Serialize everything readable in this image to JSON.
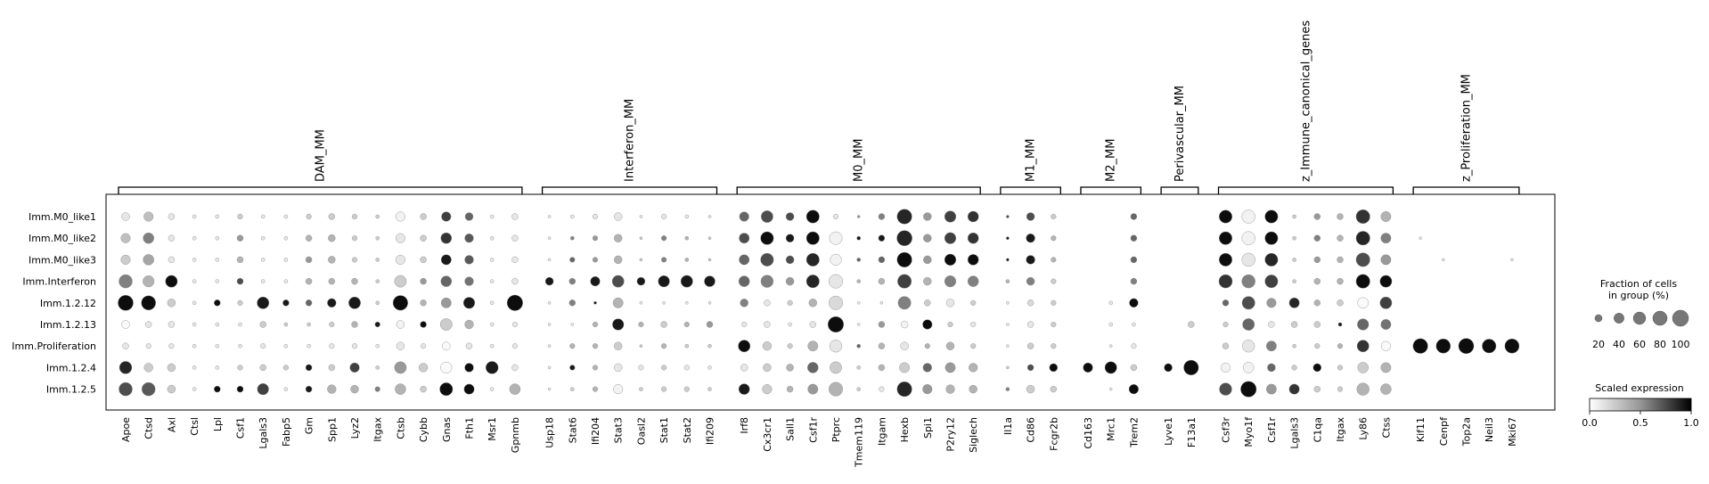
{
  "chart_data": {
    "type": "dotplot",
    "rows": [
      "Imm.M0_like1",
      "Imm.M0_like2",
      "Imm.M0_like3",
      "Imm.Interferon",
      "Imm.1.2.12",
      "Imm.1.2.13",
      "Imm.Proliferation",
      "Imm.1.2.4",
      "Imm.1.2.5"
    ],
    "groups": [
      {
        "name": "DAM_MM",
        "genes": [
          "Apoe",
          "Ctsd",
          "Axl",
          "Ctsl",
          "Lpl",
          "Csf1",
          "Lgals3",
          "Fabp5",
          "Gm",
          "Spp1",
          "Lyz2",
          "Itgax",
          "Ctsb",
          "Cybb",
          "Gnas",
          "Fth1",
          "Msr1",
          "Gpnmb"
        ]
      },
      {
        "name": "Interferon_MM",
        "genes": [
          "Usp18",
          "Stat6",
          "Ifi204",
          "Stat3",
          "Oasl2",
          "Stat1",
          "Stat2",
          "Ifi209"
        ]
      },
      {
        "name": "M0_MM",
        "genes": [
          "Irf8",
          "Cx3cr1",
          "Sall1",
          "Csf1r",
          "Ptprc",
          "Tmem119",
          "Itgam",
          "Hexb",
          "Spi1",
          "P2ry12",
          "Siglech"
        ]
      },
      {
        "name": "M1_MM",
        "genes": [
          "Il1a",
          "Cd86",
          "Fcgr2b"
        ]
      },
      {
        "name": "M2_MM",
        "genes": [
          "Cd163",
          "Mrc1",
          "Trem2"
        ]
      },
      {
        "name": "Perivascular_MM",
        "genes": [
          "Lyve1",
          "F13a1"
        ]
      },
      {
        "name": "z_Immune_canonical_genes",
        "genes": [
          "Csf3r",
          "Myo1f",
          "Csf1r",
          "Lgals3",
          "C1qa",
          "Itgax",
          "Ly86",
          "Ctss"
        ]
      },
      {
        "name": "z_Proliferation_MM",
        "genes": [
          "Kif11",
          "Cenpf",
          "Top2a",
          "Neil3",
          "Mki67"
        ]
      }
    ],
    "fraction": [
      [
        25,
        35,
        15,
        5,
        5,
        10,
        5,
        5,
        10,
        15,
        10,
        5,
        35,
        15,
        35,
        25,
        5,
        15,
        3,
        5,
        10,
        25,
        3,
        10,
        5,
        3,
        35,
        55,
        25,
        65,
        10,
        3,
        15,
        85,
        25,
        50,
        45,
        3,
        25,
        10,
        0,
        0,
        15,
        0,
        0,
        65,
        70,
        65,
        5,
        15,
        15,
        75,
        40,
        0,
        0,
        0,
        0,
        0
      ],
      [
        35,
        45,
        15,
        5,
        5,
        15,
        5,
        5,
        15,
        20,
        10,
        5,
        35,
        15,
        45,
        30,
        5,
        15,
        3,
        5,
        10,
        25,
        3,
        10,
        5,
        3,
        40,
        65,
        25,
        65,
        65,
        5,
        15,
        90,
        25,
        50,
        45,
        3,
        30,
        10,
        0,
        0,
        15,
        0,
        0,
        65,
        70,
        65,
        5,
        15,
        15,
        75,
        40,
        3,
        0,
        0,
        0,
        0
      ],
      [
        35,
        45,
        15,
        5,
        5,
        15,
        5,
        5,
        15,
        20,
        10,
        5,
        35,
        15,
        40,
        30,
        5,
        15,
        3,
        10,
        10,
        25,
        3,
        10,
        5,
        3,
        40,
        65,
        25,
        65,
        50,
        5,
        15,
        85,
        25,
        50,
        45,
        3,
        30,
        10,
        0,
        0,
        15,
        0,
        0,
        65,
        70,
        65,
        5,
        15,
        15,
        75,
        40,
        0,
        3,
        0,
        0,
        3
      ],
      [
        70,
        50,
        55,
        5,
        5,
        15,
        5,
        5,
        15,
        15,
        15,
        5,
        55,
        15,
        45,
        30,
        5,
        15,
        25,
        15,
        35,
        55,
        25,
        50,
        55,
        45,
        45,
        60,
        25,
        65,
        75,
        5,
        15,
        75,
        25,
        50,
        45,
        5,
        25,
        10,
        0,
        0,
        15,
        0,
        0,
        70,
        70,
        65,
        5,
        15,
        15,
        75,
        55,
        0,
        0,
        0,
        0,
        0
      ],
      [
        90,
        80,
        25,
        5,
        15,
        10,
        55,
        15,
        15,
        30,
        55,
        5,
        85,
        15,
        40,
        50,
        5,
        95,
        3,
        15,
        3,
        40,
        3,
        3,
        3,
        3,
        25,
        15,
        10,
        25,
        75,
        3,
        3,
        65,
        15,
        25,
        10,
        3,
        15,
        10,
        0,
        5,
        30,
        0,
        0,
        15,
        65,
        35,
        40,
        15,
        15,
        45,
        55,
        0,
        0,
        0,
        0,
        0
      ],
      [
        25,
        15,
        15,
        5,
        5,
        5,
        15,
        5,
        5,
        10,
        15,
        10,
        25,
        15,
        55,
        30,
        5,
        10,
        3,
        3,
        10,
        50,
        10,
        15,
        10,
        15,
        10,
        15,
        5,
        15,
        95,
        3,
        15,
        20,
        35,
        10,
        10,
        3,
        15,
        10,
        0,
        5,
        5,
        0,
        15,
        10,
        55,
        15,
        15,
        15,
        5,
        50,
        40,
        0,
        0,
        0,
        0,
        0
      ],
      [
        15,
        10,
        10,
        5,
        5,
        5,
        10,
        5,
        5,
        10,
        10,
        5,
        25,
        10,
        25,
        15,
        5,
        10,
        3,
        10,
        10,
        25,
        3,
        10,
        5,
        5,
        55,
        30,
        10,
        40,
        60,
        5,
        15,
        25,
        10,
        25,
        10,
        3,
        15,
        10,
        0,
        3,
        10,
        0,
        0,
        15,
        60,
        40,
        5,
        10,
        10,
        55,
        35,
        85,
        80,
        90,
        75,
        80
      ],
      [
        60,
        30,
        25,
        5,
        5,
        10,
        15,
        10,
        15,
        15,
        35,
        5,
        55,
        30,
        50,
        30,
        60,
        15,
        3,
        10,
        10,
        25,
        10,
        10,
        10,
        5,
        20,
        25,
        20,
        45,
        55,
        5,
        15,
        40,
        30,
        40,
        30,
        3,
        15,
        25,
        35,
        55,
        15,
        25,
        85,
        35,
        45,
        25,
        10,
        25,
        10,
        45,
        40,
        0,
        0,
        0,
        0,
        0
      ],
      [
        70,
        70,
        25,
        5,
        15,
        15,
        50,
        5,
        15,
        30,
        25,
        10,
        45,
        15,
        65,
        40,
        5,
        45,
        3,
        5,
        10,
        35,
        5,
        10,
        10,
        5,
        45,
        35,
        15,
        40,
        75,
        5,
        10,
        85,
        35,
        30,
        25,
        5,
        25,
        15,
        0,
        3,
        35,
        0,
        0,
        60,
        95,
        40,
        40,
        15,
        10,
        60,
        45,
        0,
        0,
        0,
        0,
        0
      ]
    ],
    "expression": [
      [
        0.1,
        0.25,
        0.1,
        0.1,
        0.1,
        0.2,
        0.1,
        0.1,
        0.2,
        0.2,
        0.2,
        0.2,
        0.05,
        0.2,
        0.75,
        0.6,
        0.1,
        0.1,
        0.1,
        0.1,
        0.1,
        0.1,
        0.1,
        0.1,
        0.1,
        0.1,
        0.6,
        0.7,
        0.7,
        0.95,
        0.1,
        0.4,
        0.5,
        0.85,
        0.4,
        0.75,
        0.8,
        0.7,
        0.7,
        0.2,
        0,
        0,
        0.6,
        0,
        0,
        0.95,
        0.05,
        0.95,
        0.2,
        0.4,
        0.3,
        0.8,
        0.3,
        0,
        0,
        0,
        0,
        0
      ],
      [
        0.25,
        0.5,
        0.1,
        0.1,
        0.1,
        0.4,
        0.1,
        0.1,
        0.3,
        0.3,
        0.2,
        0.2,
        0.1,
        0.2,
        0.8,
        0.65,
        0.1,
        0.1,
        0.1,
        0.5,
        0.4,
        0.3,
        0.2,
        0.5,
        0.3,
        0.2,
        0.7,
        0.95,
        0.9,
        0.95,
        0.05,
        0.9,
        0.9,
        0.85,
        0.4,
        0.75,
        0.8,
        0.9,
        0.9,
        0.3,
        0,
        0,
        0.6,
        0,
        0,
        0.95,
        0.05,
        0.95,
        0.2,
        0.5,
        0.3,
        0.85,
        0.5,
        0.1,
        0,
        0,
        0,
        0
      ],
      [
        0.2,
        0.35,
        0.1,
        0.1,
        0.1,
        0.3,
        0.1,
        0.1,
        0.4,
        0.3,
        0.2,
        0.2,
        0.1,
        0.2,
        0.9,
        0.65,
        0.1,
        0.1,
        0.1,
        0.6,
        0.4,
        0.3,
        0.2,
        0.5,
        0.3,
        0.2,
        0.6,
        0.7,
        0.7,
        0.85,
        0.05,
        0.6,
        0.6,
        0.95,
        0.4,
        0.95,
        0.95,
        0.9,
        0.9,
        0.3,
        0,
        0,
        0.6,
        0,
        0,
        0.95,
        0.1,
        0.85,
        0.2,
        0.4,
        0.3,
        0.7,
        0.4,
        0,
        0.1,
        0,
        0,
        0.1
      ],
      [
        0.5,
        0.3,
        0.95,
        0.1,
        0.1,
        0.7,
        0.1,
        0.1,
        0.3,
        0.3,
        0.3,
        0.2,
        0.2,
        0.4,
        0.6,
        0.55,
        0.1,
        0.1,
        0.9,
        0.5,
        0.9,
        0.7,
        0.9,
        0.9,
        0.9,
        0.9,
        0.6,
        0.5,
        0.4,
        0.85,
        0.1,
        0.3,
        0.3,
        0.75,
        0.3,
        0.5,
        0.5,
        0.3,
        0.5,
        0.2,
        0,
        0,
        0.5,
        0,
        0,
        0.8,
        0.5,
        0.75,
        0.2,
        0.3,
        0.3,
        0.95,
        0.95,
        0,
        0,
        0,
        0,
        0
      ],
      [
        0.95,
        0.95,
        0.2,
        0.1,
        0.95,
        0.2,
        0.9,
        0.9,
        0.6,
        0.9,
        0.9,
        0.2,
        0.95,
        0.3,
        0.4,
        0.9,
        0.1,
        0.95,
        0.1,
        0.5,
        0.9,
        0.3,
        0.1,
        0.1,
        0.1,
        0.1,
        0.5,
        0.1,
        0.2,
        0.3,
        0.15,
        0.1,
        0.1,
        0.5,
        0.2,
        0.1,
        0.2,
        0.1,
        0.15,
        0.2,
        0,
        0.1,
        0.95,
        0,
        0,
        0.6,
        0.7,
        0.4,
        0.85,
        0.3,
        0.2,
        0.02,
        0.75,
        0,
        0,
        0,
        0,
        0
      ],
      [
        0.02,
        0.1,
        0.1,
        0.1,
        0.1,
        0.1,
        0.2,
        0.2,
        0.2,
        0.2,
        0.3,
        0.9,
        0.05,
        0.95,
        0.2,
        0.3,
        0.1,
        0.1,
        0.1,
        0.1,
        0.3,
        0.9,
        0.3,
        0.2,
        0.3,
        0.4,
        0.1,
        0.1,
        0.1,
        0.1,
        0.95,
        0.1,
        0.4,
        0.05,
        0.95,
        0.2,
        0.1,
        0.1,
        0.1,
        0.2,
        0,
        0.1,
        0.1,
        0,
        0.2,
        0.2,
        0.6,
        0.1,
        0.2,
        0.2,
        0.9,
        0.6,
        0.55,
        0,
        0,
        0,
        0,
        0
      ],
      [
        0.1,
        0.1,
        0.1,
        0.1,
        0.1,
        0.1,
        0.1,
        0.1,
        0.1,
        0.1,
        0.1,
        0.1,
        0.1,
        0.1,
        0.02,
        0.1,
        0.1,
        0.1,
        0.1,
        0.3,
        0.3,
        0.2,
        0.2,
        0.3,
        0.2,
        0.2,
        0.95,
        0.2,
        0.2,
        0.3,
        0.1,
        0.6,
        0.3,
        0.1,
        0.3,
        0.3,
        0.2,
        0.1,
        0.2,
        0.2,
        0,
        0.1,
        0.1,
        0,
        0,
        0.2,
        0.1,
        0.5,
        0.2,
        0.2,
        0.3,
        0.8,
        0.02,
        0.95,
        0.95,
        0.95,
        0.95,
        0.95
      ],
      [
        0.85,
        0.2,
        0.2,
        0.1,
        0.1,
        0.2,
        0.2,
        0.2,
        0.9,
        0.2,
        0.75,
        0.2,
        0.4,
        0.2,
        0.02,
        0.95,
        0.9,
        0.1,
        0.1,
        0.9,
        0.3,
        0.1,
        0.1,
        0.2,
        0.1,
        0.1,
        0.1,
        0.2,
        0.3,
        0.6,
        0.2,
        0.2,
        0.3,
        0.2,
        0.6,
        0.4,
        0.3,
        0.2,
        0.7,
        0.95,
        0.95,
        0.95,
        0.2,
        0.95,
        0.95,
        0.05,
        0.05,
        0.6,
        0.2,
        0.95,
        0.2,
        0.2,
        0.3,
        0,
        0,
        0,
        0,
        0
      ],
      [
        0.7,
        0.65,
        0.2,
        0.1,
        0.95,
        0.95,
        0.75,
        0.1,
        0.9,
        0.3,
        0.3,
        0.5,
        0.3,
        0.2,
        0.95,
        0.95,
        0.1,
        0.3,
        0.1,
        0.2,
        0.3,
        0.05,
        0.2,
        0.2,
        0.2,
        0.2,
        0.9,
        0.2,
        0.3,
        0.4,
        0.3,
        0.2,
        0.1,
        0.85,
        0.4,
        0.3,
        0.3,
        0.5,
        0.2,
        0.2,
        0,
        0.1,
        0.95,
        0,
        0,
        0.7,
        0.95,
        0.4,
        0.8,
        0.2,
        0.2,
        0.3,
        0.3,
        0,
        0,
        0,
        0,
        0
      ]
    ],
    "size_legend": {
      "title": "Fraction of cells\nin group (%)",
      "values": [
        20,
        40,
        60,
        80,
        100
      ]
    },
    "color_legend": {
      "title": "Scaled expression",
      "range": [
        0,
        1
      ],
      "ticks": [
        "0.0",
        "0.5",
        "1.0"
      ],
      "colormap": "Greys"
    }
  }
}
